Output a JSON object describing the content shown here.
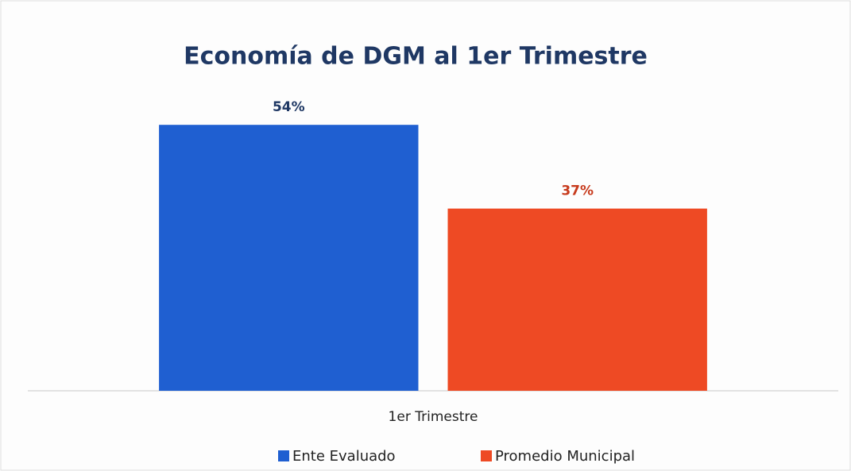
{
  "chart_data": {
    "type": "bar",
    "title": "Economía de DGM al 1er Trimestre",
    "categories": [
      "1er Trimestre"
    ],
    "series": [
      {
        "name": "Ente Evaluado",
        "color": "#1f5fd1",
        "label_color": "#1f3864",
        "values": [
          54
        ],
        "value_labels": [
          "54%"
        ]
      },
      {
        "name": "Promedio Municipal",
        "color": "#ee4a24",
        "label_color": "#c73a1c",
        "values": [
          37
        ],
        "value_labels": [
          "37%"
        ]
      }
    ],
    "ylim": [
      0,
      60
    ],
    "legend": "bottom"
  }
}
